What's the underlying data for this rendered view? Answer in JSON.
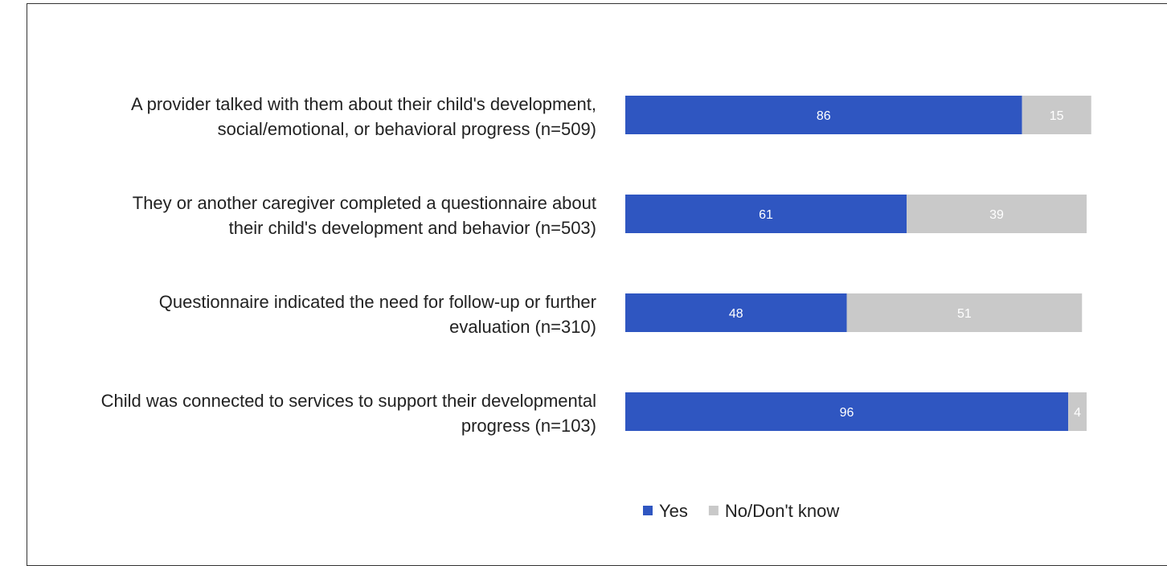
{
  "chart_data": {
    "type": "stacked-bar-horizontal",
    "categories": [
      "A provider talked with them about their child's development, social/emotional, or behavioral progress (n=509)",
      "They or another caregiver completed a questionnaire about their child's development and behavior (n=503)",
      "Questionnaire indicated the need for follow-up or further evaluation (n=310)",
      "Child was connected to services to support their developmental progress (n=103)"
    ],
    "series": [
      {
        "name": "Yes",
        "color": "#2f56c1",
        "values": [
          86,
          61,
          48,
          96
        ]
      },
      {
        "name": "No/Don't know",
        "color": "#c9c9c9",
        "values": [
          15,
          39,
          51,
          4
        ]
      }
    ],
    "xlim": [
      0,
      100
    ],
    "legend": "bottom"
  }
}
